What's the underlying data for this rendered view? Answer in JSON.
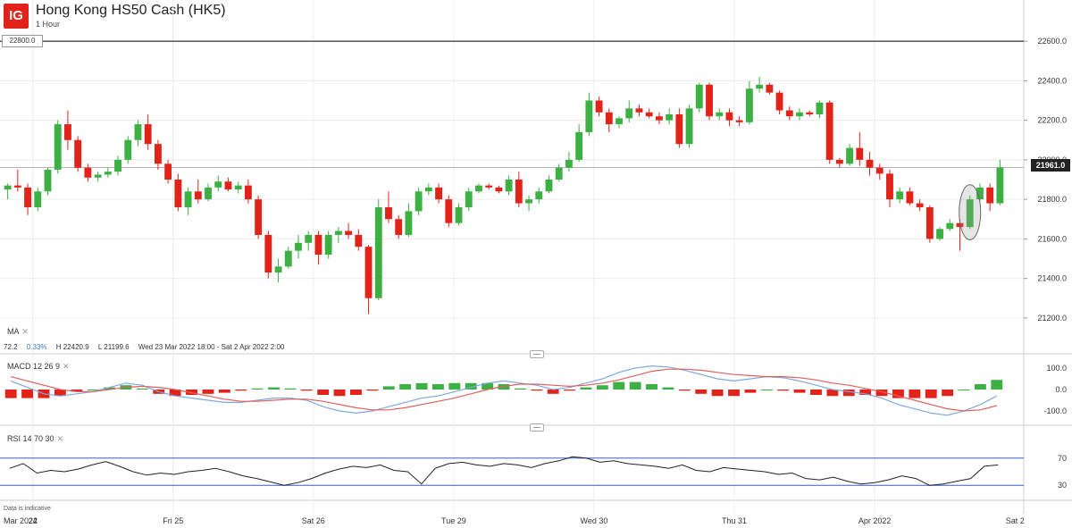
{
  "header": {
    "logo_text": "IG",
    "title": "Hong Kong HS50 Cash (HK5)",
    "timeframe": "1 Hour"
  },
  "price_tag_left": "22800.0",
  "last_price_tag": "21961.0",
  "ma_panel": {
    "label": "MA",
    "close_icon": "close-icon",
    "stats": {
      "change": "72.2",
      "change_pct": "0.33%",
      "high": "H 22420.9",
      "low": "L 21199.6",
      "range": "Wed 23 Mar 2022 18:00 - Sat 2 Apr 2022 2:00"
    }
  },
  "macd_panel": {
    "label": "MACD",
    "params": "12  26  9",
    "close_icon": "close-icon"
  },
  "rsi_panel": {
    "label": "RSI",
    "params": "14  70  30",
    "close_icon": "close-icon"
  },
  "footnote": "Data is indicative",
  "colors": {
    "up": "#3cb043",
    "down": "#e2231a",
    "macd": "#7fa8e0",
    "signal": "#e06060",
    "rsi": "#222222",
    "rsi_band": "#3a5fbf"
  },
  "chart_data": [
    {
      "type": "candlestick",
      "title": "Hong Kong HS50 Cash (HK5)",
      "interval": "1 Hour",
      "ylim": [
        21100,
        22700
      ],
      "yticks": [
        "21200.0",
        "21400.0",
        "21600.0",
        "21800.0",
        "22000.0",
        "22200.0",
        "22400.0",
        "22600.0"
      ],
      "ytick_values": [
        21200,
        21400,
        21600,
        21800,
        22000,
        22200,
        22400,
        22600
      ],
      "xticks": [
        {
          "label": "Mar 2022",
          "index": 0
        },
        {
          "label": "24",
          "index": 3
        },
        {
          "label": "Fri 25",
          "index": 17
        },
        {
          "label": "Sat 26",
          "index": 31
        },
        {
          "label": "Tue 29",
          "index": 45
        },
        {
          "label": "Wed 30",
          "index": 59
        },
        {
          "label": "Thu 31",
          "index": 73
        },
        {
          "label": "Apr 2022",
          "index": 87
        },
        {
          "label": "Sat 2",
          "index": 101
        }
      ],
      "horizontal_line": 22600,
      "last_price": 21961,
      "grid": true,
      "candles": [
        [
          21850,
          21880,
          21800,
          21870
        ],
        [
          21870,
          21950,
          21840,
          21860
        ],
        [
          21860,
          21880,
          21720,
          21760
        ],
        [
          21760,
          21860,
          21740,
          21840
        ],
        [
          21840,
          21960,
          21820,
          21950
        ],
        [
          21950,
          22200,
          21930,
          22180
        ],
        [
          22180,
          22250,
          22050,
          22100
        ],
        [
          22100,
          22120,
          21940,
          21960
        ],
        [
          21960,
          21980,
          21890,
          21910
        ],
        [
          21910,
          21940,
          21890,
          21925
        ],
        [
          21925,
          21960,
          21910,
          21940
        ],
        [
          21940,
          22020,
          21920,
          22000
        ],
        [
          22000,
          22120,
          21980,
          22100
        ],
        [
          22100,
          22200,
          22070,
          22180
        ],
        [
          22180,
          22230,
          22050,
          22080
        ],
        [
          22080,
          22100,
          21950,
          21980
        ],
        [
          21980,
          22000,
          21880,
          21900
        ],
        [
          21900,
          21930,
          21740,
          21760
        ],
        [
          21760,
          21860,
          21720,
          21840
        ],
        [
          21840,
          21900,
          21780,
          21800
        ],
        [
          21800,
          21880,
          21790,
          21860
        ],
        [
          21860,
          21920,
          21840,
          21890
        ],
        [
          21890,
          21910,
          21840,
          21850
        ],
        [
          21850,
          21890,
          21830,
          21870
        ],
        [
          21870,
          21900,
          21780,
          21800
        ],
        [
          21800,
          21820,
          21600,
          21620
        ],
        [
          21620,
          21640,
          21400,
          21430
        ],
        [
          21430,
          21500,
          21380,
          21460
        ],
        [
          21460,
          21560,
          21450,
          21540
        ],
        [
          21540,
          21620,
          21500,
          21580
        ],
        [
          21580,
          21640,
          21540,
          21620
        ],
        [
          21620,
          21640,
          21470,
          21520
        ],
        [
          21520,
          21640,
          21500,
          21620
        ],
        [
          21620,
          21660,
          21580,
          21640
        ],
        [
          21640,
          21680,
          21600,
          21620
        ],
        [
          21620,
          21650,
          21540,
          21560
        ],
        [
          21560,
          21570,
          21220,
          21300
        ],
        [
          21300,
          21800,
          21290,
          21760
        ],
        [
          21760,
          21840,
          21680,
          21700
        ],
        [
          21700,
          21720,
          21600,
          21620
        ],
        [
          21620,
          21780,
          21610,
          21740
        ],
        [
          21740,
          21860,
          21720,
          21840
        ],
        [
          21840,
          21880,
          21820,
          21860
        ],
        [
          21860,
          21880,
          21780,
          21800
        ],
        [
          21800,
          21820,
          21660,
          21680
        ],
        [
          21680,
          21780,
          21670,
          21760
        ],
        [
          21760,
          21860,
          21740,
          21840
        ],
        [
          21840,
          21880,
          21830,
          21870
        ],
        [
          21870,
          21880,
          21850,
          21860
        ],
        [
          21860,
          21870,
          21830,
          21840
        ],
        [
          21840,
          21920,
          21820,
          21900
        ],
        [
          21900,
          21940,
          21760,
          21780
        ],
        [
          21780,
          21820,
          21740,
          21800
        ],
        [
          21800,
          21860,
          21780,
          21840
        ],
        [
          21840,
          21920,
          21830,
          21900
        ],
        [
          21900,
          21980,
          21890,
          21960
        ],
        [
          21960,
          22040,
          21940,
          22000
        ],
        [
          22000,
          22180,
          21990,
          22140
        ],
        [
          22140,
          22340,
          22120,
          22300
        ],
        [
          22300,
          22320,
          22220,
          22240
        ],
        [
          22240,
          22260,
          22140,
          22180
        ],
        [
          22180,
          22220,
          22160,
          22210
        ],
        [
          22210,
          22300,
          22190,
          22260
        ],
        [
          22260,
          22280,
          22220,
          22240
        ],
        [
          22240,
          22260,
          22210,
          22220
        ],
        [
          22220,
          22240,
          22180,
          22200
        ],
        [
          22200,
          22260,
          22180,
          22230
        ],
        [
          22230,
          22260,
          22060,
          22080
        ],
        [
          22080,
          22280,
          22060,
          22260
        ],
        [
          22260,
          22390,
          22240,
          22380
        ],
        [
          22380,
          22390,
          22200,
          22220
        ],
        [
          22220,
          22260,
          22200,
          22240
        ],
        [
          22240,
          22260,
          22170,
          22200
        ],
        [
          22200,
          22220,
          22170,
          22190
        ],
        [
          22190,
          22400,
          22180,
          22360
        ],
        [
          22360,
          22420,
          22340,
          22380
        ],
        [
          22380,
          22390,
          22330,
          22340
        ],
        [
          22340,
          22350,
          22230,
          22250
        ],
        [
          22250,
          22270,
          22200,
          22220
        ],
        [
          22220,
          22260,
          22200,
          22240
        ],
        [
          22240,
          22250,
          22220,
          22230
        ],
        [
          22230,
          22300,
          22210,
          22290
        ],
        [
          22290,
          22300,
          21980,
          22000
        ],
        [
          22000,
          22010,
          21960,
          21980
        ],
        [
          21980,
          22080,
          21970,
          22060
        ],
        [
          22060,
          22140,
          21970,
          22000
        ],
        [
          22000,
          22040,
          21920,
          21960
        ],
        [
          21960,
          21980,
          21900,
          21930
        ],
        [
          21930,
          21950,
          21760,
          21800
        ],
        [
          21800,
          21860,
          21780,
          21840
        ],
        [
          21840,
          21860,
          21770,
          21780
        ],
        [
          21780,
          21800,
          21740,
          21760
        ],
        [
          21760,
          21770,
          21580,
          21600
        ],
        [
          21600,
          21660,
          21590,
          21650
        ],
        [
          21650,
          21700,
          21640,
          21680
        ],
        [
          21680,
          21700,
          21540,
          21660
        ],
        [
          21660,
          21820,
          21650,
          21800
        ],
        [
          21800,
          21880,
          21790,
          21860
        ],
        [
          21860,
          21880,
          21740,
          21780
        ],
        [
          21780,
          22000,
          21770,
          21961
        ]
      ]
    },
    {
      "type": "line",
      "title": "MACD",
      "params": [
        12,
        26,
        9
      ],
      "yticks": [
        "100.0",
        "0.0",
        "-100.0"
      ],
      "ytick_values": [
        100,
        0,
        -100
      ],
      "ylim": [
        -150,
        150
      ],
      "series": [
        {
          "name": "MACD",
          "values": [
            40,
            10,
            -20,
            -30,
            -20,
            -10,
            10,
            30,
            20,
            -10,
            -30,
            -40,
            -50,
            -60,
            -60,
            -50,
            -40,
            -40,
            -50,
            -80,
            -100,
            -110,
            -100,
            -80,
            -60,
            -40,
            -30,
            -10,
            10,
            30,
            40,
            30,
            20,
            0,
            10,
            30,
            50,
            80,
            100,
            110,
            105,
            90,
            70,
            50,
            40,
            50,
            60,
            55,
            40,
            20,
            0,
            -10,
            -20,
            -40,
            -70,
            -90,
            -110,
            -120,
            -100,
            -70,
            -30
          ]
        },
        {
          "name": "Signal",
          "values": [
            60,
            40,
            20,
            0,
            -10,
            -10,
            0,
            10,
            15,
            10,
            0,
            -15,
            -30,
            -45,
            -55,
            -55,
            -50,
            -45,
            -45,
            -55,
            -70,
            -85,
            -95,
            -95,
            -85,
            -70,
            -55,
            -40,
            -20,
            0,
            15,
            25,
            25,
            20,
            15,
            20,
            30,
            45,
            65,
            85,
            95,
            95,
            90,
            80,
            70,
            65,
            60,
            60,
            55,
            45,
            30,
            20,
            5,
            -10,
            -30,
            -50,
            -70,
            -90,
            -100,
            -95,
            -75
          ]
        },
        {
          "name": "Histogram",
          "values": [
            -40,
            -40,
            -40,
            -30,
            -10,
            0,
            10,
            20,
            5,
            -20,
            -30,
            -25,
            -20,
            -15,
            -5,
            5,
            10,
            5,
            -5,
            -25,
            -30,
            -25,
            -5,
            15,
            25,
            30,
            25,
            30,
            30,
            30,
            25,
            5,
            -5,
            -20,
            -5,
            10,
            20,
            35,
            35,
            25,
            10,
            -5,
            -20,
            -30,
            -30,
            -15,
            0,
            -5,
            -15,
            -25,
            -30,
            -30,
            -25,
            -30,
            -40,
            -40,
            -40,
            -30,
            0,
            25,
            45
          ]
        }
      ]
    },
    {
      "type": "line",
      "title": "RSI",
      "params": [
        14,
        70,
        30
      ],
      "yticks": [
        "70",
        "30"
      ],
      "ytick_values": [
        70,
        30
      ],
      "ylim": [
        0,
        100
      ],
      "series": [
        {
          "name": "RSI",
          "values": [
            55,
            62,
            48,
            52,
            50,
            54,
            60,
            65,
            58,
            50,
            45,
            48,
            46,
            50,
            52,
            55,
            50,
            44,
            40,
            35,
            30,
            34,
            40,
            48,
            54,
            58,
            56,
            60,
            52,
            50,
            32,
            55,
            62,
            64,
            60,
            58,
            62,
            60,
            56,
            62,
            66,
            72,
            70,
            64,
            66,
            62,
            60,
            58,
            55,
            60,
            52,
            50,
            56,
            54,
            52,
            50,
            46,
            48,
            40,
            38,
            42,
            36,
            32,
            34,
            38,
            44,
            40,
            30,
            32,
            36,
            40,
            58,
            60
          ]
        }
      ]
    }
  ]
}
